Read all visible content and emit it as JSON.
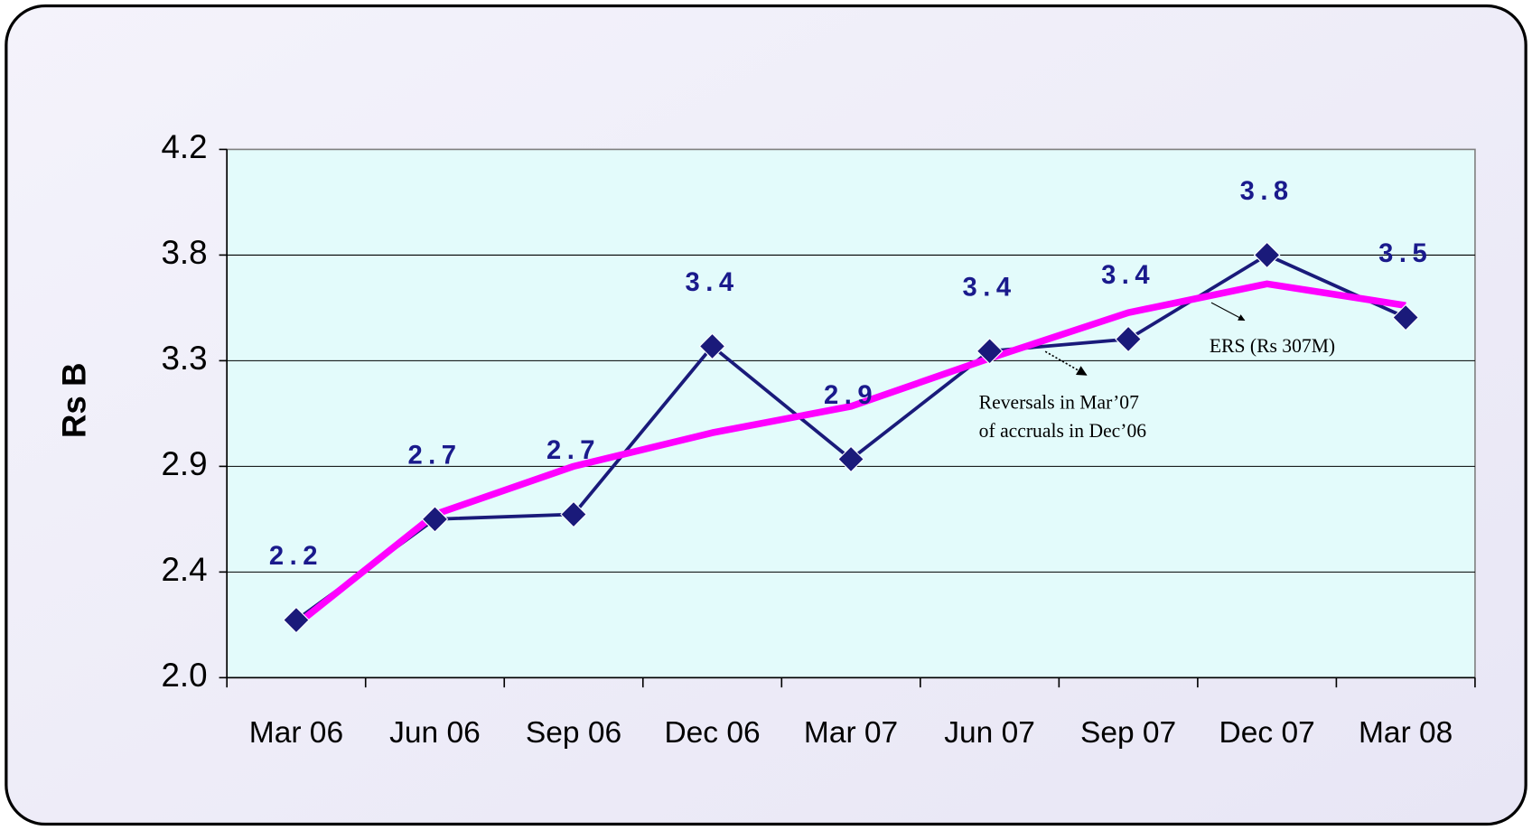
{
  "chart_data": {
    "type": "line",
    "ylabel": "Rs B",
    "categories": [
      "Mar 06",
      "Jun 06",
      "Sep 06",
      "Dec 06",
      "Mar 07",
      "Jun 07",
      "Sep 07",
      "Dec 07",
      "Mar 08"
    ],
    "series": [
      {
        "color": "#1a1a7a",
        "values": [
          2.24,
          2.66,
          2.68,
          3.38,
          2.91,
          3.36,
          3.41,
          3.76,
          3.5
        ],
        "value_labels": [
          "2.2",
          "2.7",
          "2.7",
          "3.4",
          "2.9",
          "3.4",
          "3.4",
          "3.8",
          "3.5"
        ]
      },
      {
        "color": "#ff00ff",
        "values": [
          2.22,
          2.68,
          2.88,
          3.02,
          3.13,
          3.33,
          3.52,
          3.64,
          3.55
        ]
      }
    ],
    "ylim": [
      2.0,
      4.2
    ],
    "yticks": [
      {
        "value": 2.0,
        "label": "2.0"
      },
      {
        "value": 2.44,
        "label": "2.4"
      },
      {
        "value": 2.88,
        "label": "2.9"
      },
      {
        "value": 3.32,
        "label": "3.3"
      },
      {
        "value": 3.76,
        "label": "3.8"
      },
      {
        "value": 4.2,
        "label": "4.2"
      }
    ],
    "grid": true,
    "annotations": [
      "ERS (Rs 307M)",
      "Reversals in Mar’07",
      "of accruals in Dec’06"
    ]
  }
}
